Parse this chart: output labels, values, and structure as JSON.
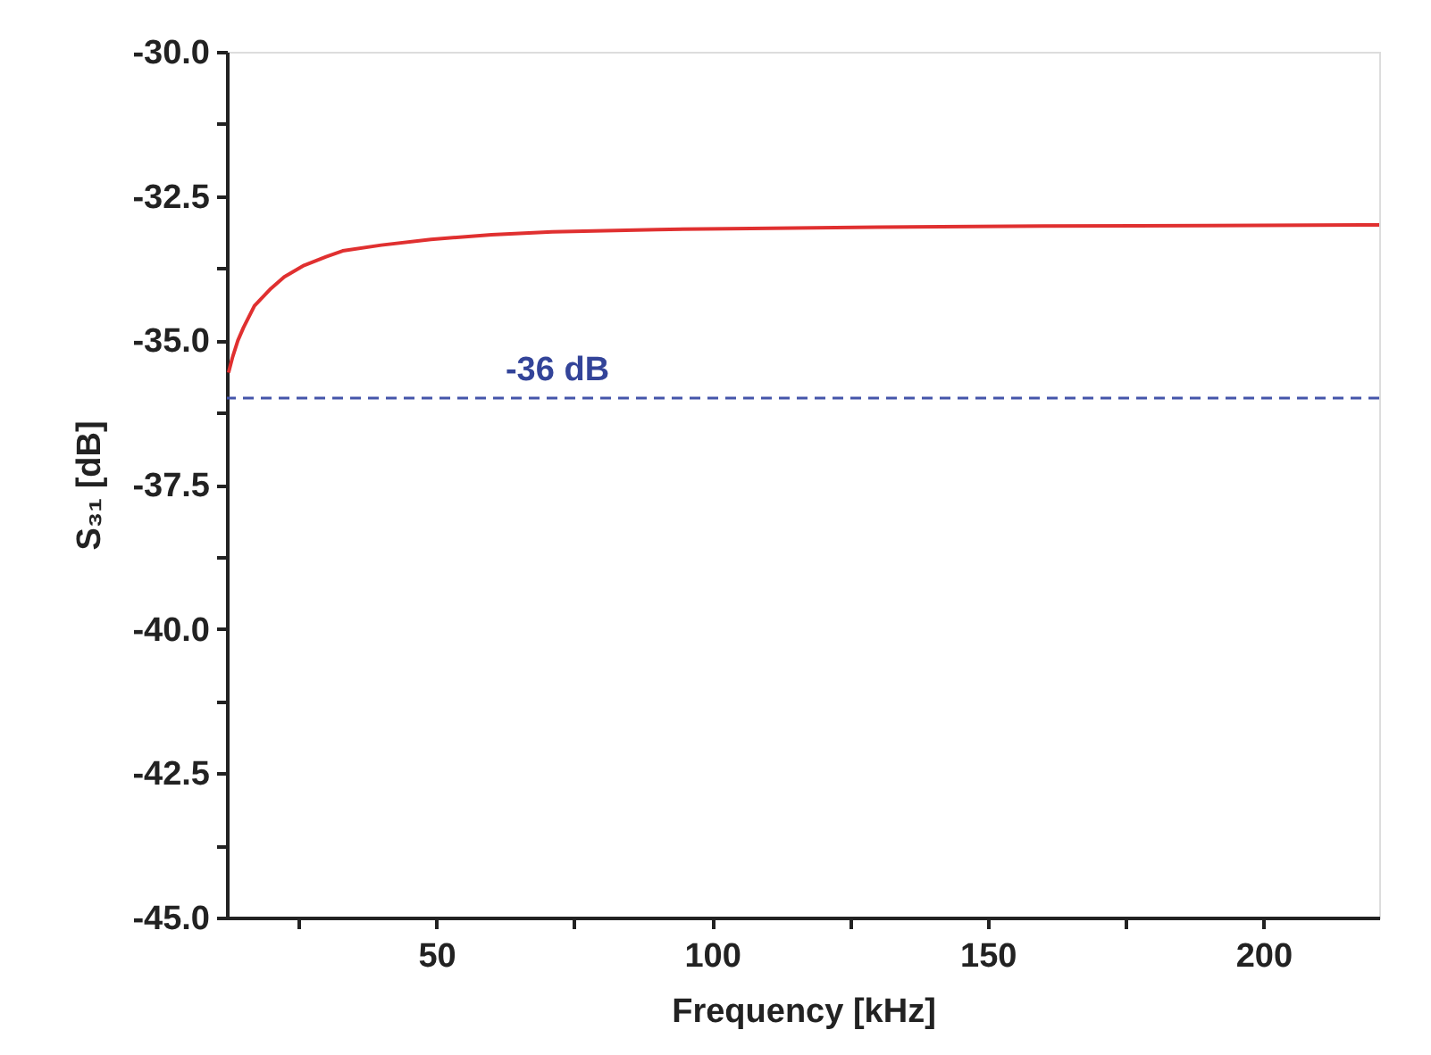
{
  "chart_data": {
    "type": "line",
    "xlabel": "Frequency [kHz]",
    "ylabel": "S₃₁ [dB]",
    "x": [
      12.3,
      13,
      14,
      15,
      17,
      20,
      22.4,
      26,
      30,
      33,
      40,
      49,
      60,
      71,
      90,
      107,
      130,
      160,
      190,
      221
    ],
    "series": [
      {
        "color": "#e03030",
        "values": [
          -35.56,
          -35.3,
          -35.0,
          -34.78,
          -34.4,
          -34.1,
          -33.9,
          -33.7,
          -33.55,
          -33.45,
          -33.35,
          -33.25,
          -33.17,
          -33.12,
          -33.08,
          -33.06,
          -33.04,
          -33.02,
          -33.01,
          -33.0
        ]
      }
    ],
    "xlim": [
      12,
      221
    ],
    "ylim": [
      -45,
      -30
    ],
    "xticks": [
      {
        "value": 25,
        "label": null
      },
      50,
      {
        "value": 75,
        "label": null
      },
      100,
      {
        "value": 125,
        "label": null
      },
      150,
      {
        "value": 175,
        "label": null
      },
      200
    ],
    "yticks": [
      {
        "value": -45,
        "label": "-45.0"
      },
      {
        "value": -43.75,
        "label": null
      },
      {
        "value": -42.5,
        "label": "-42.5"
      },
      {
        "value": -41.25,
        "label": null
      },
      {
        "value": -40,
        "label": "-40.0"
      },
      {
        "value": -38.75,
        "label": null
      },
      {
        "value": -37.5,
        "label": "-37.5"
      },
      {
        "value": -36.25,
        "label": null
      },
      {
        "value": -35,
        "label": "-35.0"
      },
      {
        "value": -33.75,
        "label": null
      },
      {
        "value": -32.5,
        "label": "-32.5"
      },
      {
        "value": -31.25,
        "label": null
      },
      {
        "value": -30,
        "label": "-30.0"
      }
    ],
    "ref_lines": [
      {
        "axis": "y",
        "value": -36,
        "label": "-36 dB",
        "color": "#4455aa",
        "line_style": "dashed"
      }
    ],
    "marker": "none",
    "line_style": "solid"
  }
}
